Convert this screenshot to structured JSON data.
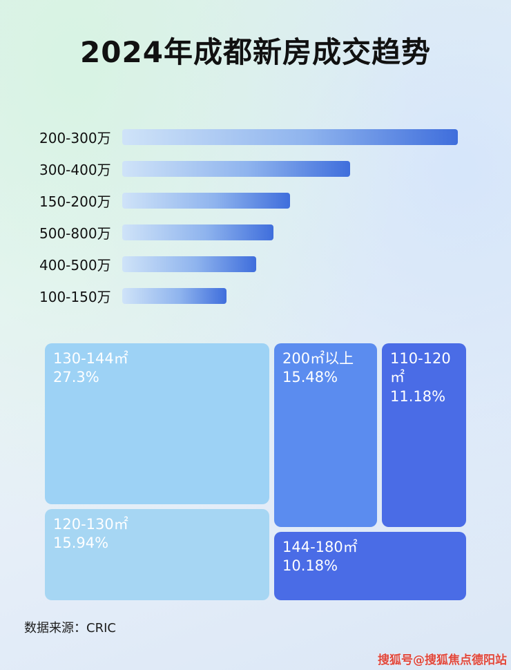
{
  "page": {
    "title": "2024年成都新房成交趋势",
    "source_note": "数据来源：CRIC",
    "watermark": "搜狐号@搜狐焦点德阳站"
  },
  "colors": {
    "bar_gradient_start": "#cfe3f8",
    "bar_gradient_end": "#3f6edc",
    "treemap_light_blue": "#9dd2f5",
    "treemap_light_blue_2": "#a6d6f3",
    "treemap_medium_blue": "#5b8cef",
    "treemap_royal_blue": "#4a6ce6",
    "watermark_red": "#e2473a"
  },
  "chart_data": [
    {
      "type": "bar",
      "orientation": "horizontal",
      "categories": [
        "200-300万",
        "300-400万",
        "150-200万",
        "500-800万",
        "400-500万",
        "100-150万"
      ],
      "values": [
        100,
        68,
        50,
        45,
        40,
        31
      ],
      "values_note": "bars carry no numeric labels in image; values are estimated lengths as % of longest bar",
      "xlim": [
        0,
        100
      ],
      "grid": false,
      "legend": false
    },
    {
      "type": "treemap",
      "items": [
        {
          "label": "130-144㎡",
          "value": 27.3,
          "display": "27.3%",
          "color": "#9dd2f5"
        },
        {
          "label": "200㎡以上",
          "value": 15.48,
          "display": "15.48%",
          "color": "#5b8cef"
        },
        {
          "label": "110-120㎡",
          "value": 11.18,
          "display": "11.18%",
          "color": "#4a6ce6"
        },
        {
          "label": "120-130㎡",
          "value": 15.94,
          "display": "15.94%",
          "color": "#a6d6f3"
        },
        {
          "label": "144-180㎡",
          "value": 10.18,
          "display": "10.18%",
          "color": "#4a6ce6"
        }
      ]
    }
  ]
}
